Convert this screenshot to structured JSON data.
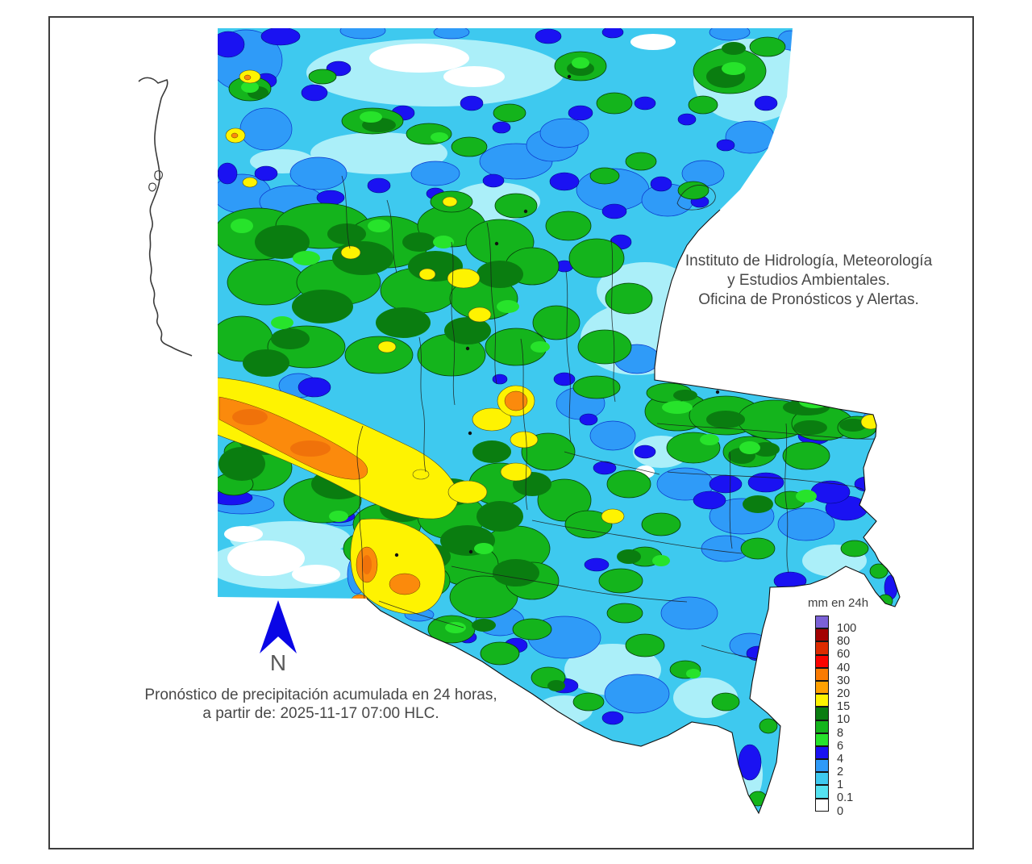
{
  "branding": {
    "lines": [
      "Instituto de Hidrología, Meteorología",
      "y Estudios Ambientales.",
      "Oficina de Pronósticos y Alertas."
    ]
  },
  "caption": {
    "lines": [
      "Pronóstico de precipitación acumulada en 24 horas,",
      "a partir de: 2025-11-17 07:00 HLC."
    ]
  },
  "north_arrow": {
    "label": "N",
    "color": "#0a06e6"
  },
  "legend": {
    "title": "mm en 24h",
    "entries": [
      {
        "value": "100",
        "color": "#7b61d6"
      },
      {
        "value": "80",
        "color": "#a30202"
      },
      {
        "value": "60",
        "color": "#dd2b00"
      },
      {
        "value": "40",
        "color": "#fa0400"
      },
      {
        "value": "30",
        "color": "#fa7b02"
      },
      {
        "value": "20",
        "color": "#ffa101"
      },
      {
        "value": "15",
        "color": "#fef301"
      },
      {
        "value": "10",
        "color": "#0a7d10"
      },
      {
        "value": "8",
        "color": "#14b41c"
      },
      {
        "value": "6",
        "color": "#27e32b"
      },
      {
        "value": "4",
        "color": "#1a12f2"
      },
      {
        "value": "2",
        "color": "#2e9af8"
      },
      {
        "value": "1",
        "color": "#3ec9ef"
      },
      {
        "value": "0.1",
        "color": "#55e2f0"
      },
      {
        "value": "0",
        "color": "#ffffff"
      }
    ]
  }
}
